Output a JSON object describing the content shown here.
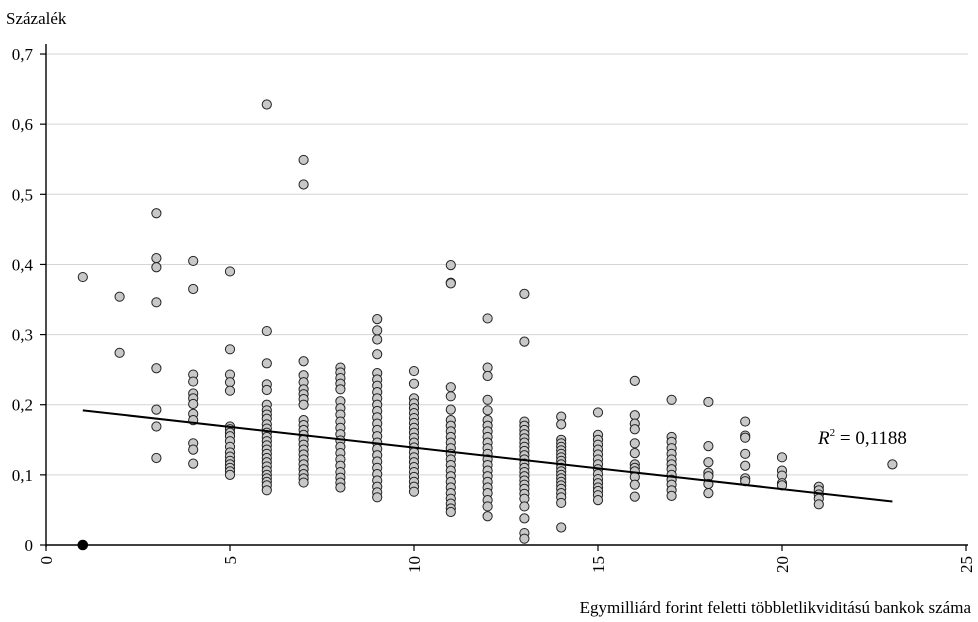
{
  "chart_data": {
    "type": "scatter",
    "ylabel": "Százalék",
    "xlabel": "Egymilliárd forint feletti többletlikviditású bankok száma",
    "xlim": [
      0,
      25
    ],
    "ylim": [
      0,
      0.7
    ],
    "x_ticks": [
      0,
      5,
      10,
      15,
      20,
      25
    ],
    "x_tick_labels": [
      "0",
      "5",
      "10",
      "15",
      "20",
      "25"
    ],
    "y_ticks": [
      0,
      0.1,
      0.2,
      0.3,
      0.4,
      0.5,
      0.6,
      0.7
    ],
    "y_tick_labels": [
      "0",
      "0,1",
      "0,2",
      "0,3",
      "0,4",
      "0,5",
      "0,6",
      "0,7"
    ],
    "grid": "horizontal",
    "colors": {
      "point_fill": "#c8c8c8",
      "point_stroke": "#222222",
      "trend_line": "#000000",
      "grid": "#d4d4d4"
    },
    "trendline": {
      "x": [
        1,
        23
      ],
      "y": [
        0.192,
        0.062
      ]
    },
    "r_squared_label": {
      "prefix": "R",
      "exponent": "2",
      "suffix": " = 0,1188"
    },
    "highlighted_points": [
      {
        "x": 1,
        "y": 0.0
      }
    ],
    "points": {
      "1": [
        0.382
      ],
      "2": [
        0.354,
        0.274
      ],
      "3": [
        0.473,
        0.409,
        0.396,
        0.346,
        0.252,
        0.193,
        0.169,
        0.124
      ],
      "4": [
        0.405,
        0.365,
        0.243,
        0.233,
        0.216,
        0.209,
        0.201,
        0.187,
        0.178,
        0.145,
        0.136,
        0.116
      ],
      "5": [
        0.39,
        0.279,
        0.243,
        0.232,
        0.22,
        0.169,
        0.165,
        0.16,
        0.155,
        0.148,
        0.14,
        0.132,
        0.126,
        0.12,
        0.115,
        0.11,
        0.105,
        0.1
      ],
      "6": [
        0.628,
        0.305,
        0.259,
        0.229,
        0.221,
        0.2,
        0.192,
        0.186,
        0.18,
        0.172,
        0.166,
        0.16,
        0.154,
        0.148,
        0.142,
        0.136,
        0.13,
        0.124,
        0.118,
        0.112,
        0.106,
        0.1,
        0.095,
        0.09,
        0.085,
        0.078
      ],
      "7": [
        0.549,
        0.514,
        0.262,
        0.242,
        0.232,
        0.222,
        0.215,
        0.208,
        0.2,
        0.178,
        0.171,
        0.164,
        0.157,
        0.15,
        0.143,
        0.136,
        0.129,
        0.122,
        0.115,
        0.108,
        0.101,
        0.095,
        0.089
      ],
      "8": [
        0.253,
        0.246,
        0.238,
        0.23,
        0.222,
        0.205,
        0.195,
        0.186,
        0.176,
        0.167,
        0.158,
        0.149,
        0.14,
        0.131,
        0.122,
        0.113,
        0.104,
        0.096,
        0.089,
        0.082
      ],
      "9": [
        0.322,
        0.306,
        0.293,
        0.272,
        0.245,
        0.236,
        0.227,
        0.218,
        0.209,
        0.2,
        0.191,
        0.182,
        0.173,
        0.164,
        0.155,
        0.146,
        0.137,
        0.128,
        0.119,
        0.11,
        0.101,
        0.092,
        0.083,
        0.075,
        0.068
      ],
      "10": [
        0.248,
        0.23,
        0.209,
        0.202,
        0.195,
        0.188,
        0.181,
        0.174,
        0.167,
        0.16,
        0.153,
        0.146,
        0.139,
        0.132,
        0.125,
        0.118,
        0.111,
        0.104,
        0.097,
        0.09,
        0.083,
        0.076
      ],
      "11": [
        0.399,
        0.374,
        0.373,
        0.225,
        0.212,
        0.193,
        0.178,
        0.17,
        0.162,
        0.154,
        0.146,
        0.138,
        0.13,
        0.122,
        0.114,
        0.106,
        0.098,
        0.09,
        0.082,
        0.074,
        0.066,
        0.059,
        0.052,
        0.047
      ],
      "12": [
        0.323,
        0.253,
        0.241,
        0.207,
        0.192,
        0.178,
        0.17,
        0.162,
        0.154,
        0.146,
        0.138,
        0.13,
        0.122,
        0.114,
        0.106,
        0.098,
        0.09,
        0.082,
        0.074,
        0.064,
        0.055,
        0.041
      ],
      "13": [
        0.358,
        0.29,
        0.176,
        0.17,
        0.164,
        0.158,
        0.152,
        0.146,
        0.14,
        0.134,
        0.128,
        0.122,
        0.116,
        0.11,
        0.104,
        0.098,
        0.092,
        0.086,
        0.08,
        0.073,
        0.066,
        0.055,
        0.038,
        0.017,
        0.009
      ],
      "14": [
        0.183,
        0.172,
        0.15,
        0.145,
        0.14,
        0.135,
        0.13,
        0.125,
        0.12,
        0.115,
        0.11,
        0.105,
        0.1,
        0.095,
        0.09,
        0.085,
        0.08,
        0.074,
        0.068,
        0.06,
        0.025
      ],
      "15": [
        0.189,
        0.157,
        0.15,
        0.143,
        0.136,
        0.129,
        0.122,
        0.115,
        0.108,
        0.101,
        0.094,
        0.088,
        0.082,
        0.077,
        0.071,
        0.064
      ],
      "16": [
        0.234,
        0.185,
        0.173,
        0.165,
        0.145,
        0.131,
        0.115,
        0.11,
        0.105,
        0.097,
        0.086,
        0.069
      ],
      "17": [
        0.207,
        0.154,
        0.147,
        0.138,
        0.13,
        0.122,
        0.115,
        0.108,
        0.1,
        0.093,
        0.086,
        0.078,
        0.07
      ],
      "18": [
        0.204,
        0.141,
        0.118,
        0.103,
        0.098,
        0.087,
        0.074
      ],
      "19": [
        0.176,
        0.156,
        0.153,
        0.13,
        0.113,
        0.095,
        0.091
      ],
      "20": [
        0.125,
        0.106,
        0.099,
        0.088,
        0.085
      ],
      "21": [
        0.083,
        0.078,
        0.072,
        0.066,
        0.058
      ],
      "23": [
        0.115
      ]
    }
  }
}
